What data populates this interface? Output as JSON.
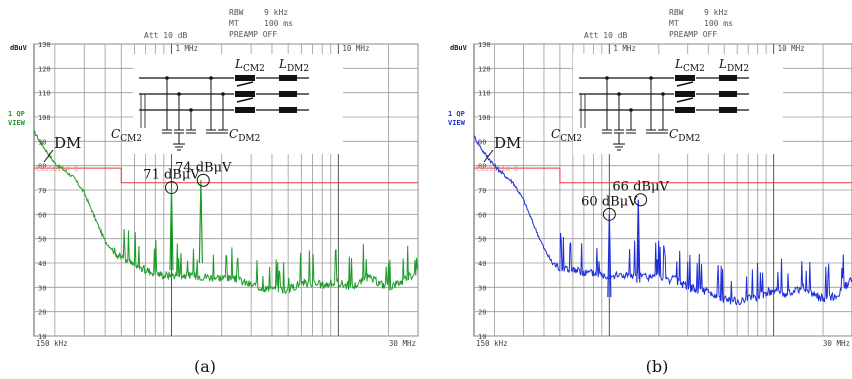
{
  "panels": [
    {
      "id": "a",
      "caption": "(a)",
      "header": {
        "att": "Att 10 dB",
        "rbw_label": "RBW",
        "rbw_value": "9 kHz",
        "mt_label": "MT",
        "mt_value": "100 ms",
        "preamp": "PREAMP OFF"
      },
      "unit_label": "dBuV",
      "trace_label": [
        "1 QP",
        "VIEW"
      ],
      "limit_label": "EN55011A Q",
      "dm_label": "DM",
      "component_labels": {
        "lcm": "L",
        "lcm_sub": "CM2",
        "ldm": "L",
        "ldm_sub": "DM2",
        "ccm": "C",
        "ccm_sub": "CM2",
        "cdm": "C",
        "cdm_sub": "DM2"
      },
      "annotations": [
        {
          "text": "71 dBμV",
          "freq_mhz": 1.0,
          "level": 71
        },
        {
          "text": "74 dBμV",
          "freq_mhz": 1.55,
          "level": 74
        }
      ],
      "colors": {
        "trace": "#1f9a2a"
      }
    },
    {
      "id": "b",
      "caption": "(b)",
      "header": {
        "att": "Att 10 dB",
        "rbw_label": "RBW",
        "rbw_value": "9 kHz",
        "mt_label": "MT",
        "mt_value": "100 ms",
        "preamp": "PREAMP OFF"
      },
      "unit_label": "dBuV",
      "trace_label": [
        "1 QP",
        "VIEW"
      ],
      "limit_label": "EN55011A Q",
      "dm_label": "DM",
      "component_labels": {
        "lcm": "L",
        "lcm_sub": "CM2",
        "ldm": "L",
        "ldm_sub": "DM2",
        "ccm": "C",
        "ccm_sub": "CM2",
        "cdm": "C",
        "cdm_sub": "DM2"
      },
      "annotations": [
        {
          "text": "60 dBμV",
          "freq_mhz": 1.0,
          "level": 60
        },
        {
          "text": "66 dBμV",
          "freq_mhz": 1.55,
          "level": 66
        }
      ],
      "colors": {
        "trace": "#1f2fd6"
      }
    }
  ],
  "chart_data": [
    {
      "type": "line",
      "title": "",
      "xlabel": "",
      "ylabel": "dBuV",
      "x_scale": "log",
      "x_ticks": [
        "150 kHz",
        "1 MHz",
        "10 MHz",
        "30 MHz"
      ],
      "x_tick_values_mhz": [
        0.15,
        1,
        10,
        30
      ],
      "xlim_mhz": [
        0.15,
        30
      ],
      "y_ticks": [
        10,
        20,
        30,
        40,
        50,
        60,
        70,
        80,
        90,
        100,
        110,
        120,
        130
      ],
      "ylim": [
        10,
        130
      ],
      "grid": true,
      "series": [
        {
          "name": "1 QP VIEW",
          "x_mhz": [
            0.15,
            0.17,
            0.2,
            0.23,
            0.26,
            0.3,
            0.35,
            0.4,
            0.45,
            0.5,
            0.6,
            0.7,
            0.8,
            0.9,
            1.0,
            1.2,
            1.5,
            2.0,
            2.5,
            3.0,
            4.0,
            5.0,
            6.0,
            8.0,
            10.0,
            12.0,
            15.0,
            20.0,
            25.0,
            30.0
          ],
          "y": [
            94,
            88,
            81,
            78,
            75,
            69,
            58,
            49,
            45,
            42,
            39,
            37,
            36,
            35,
            71,
            35,
            74,
            34,
            33,
            31,
            29,
            29,
            32,
            31,
            32,
            30,
            34,
            30,
            33,
            37
          ]
        },
        {
          "name": "EN55011A Q",
          "x_mhz": [
            0.15,
            0.5,
            0.5,
            30
          ],
          "y": [
            79,
            79,
            73,
            73
          ]
        }
      ]
    },
    {
      "type": "line",
      "title": "",
      "xlabel": "",
      "ylabel": "dBuV",
      "x_scale": "log",
      "x_ticks": [
        "150 kHz",
        "1 MHz",
        "10 MHz",
        "30 MHz"
      ],
      "x_tick_values_mhz": [
        0.15,
        1,
        10,
        30
      ],
      "xlim_mhz": [
        0.15,
        30
      ],
      "y_ticks": [
        10,
        20,
        30,
        40,
        50,
        60,
        70,
        80,
        90,
        100,
        110,
        120,
        130
      ],
      "ylim": [
        10,
        130
      ],
      "grid": true,
      "series": [
        {
          "name": "1 QP VIEW",
          "x_mhz": [
            0.15,
            0.17,
            0.2,
            0.23,
            0.26,
            0.3,
            0.35,
            0.4,
            0.45,
            0.5,
            0.6,
            0.7,
            0.8,
            0.9,
            1.0,
            1.2,
            1.5,
            2.0,
            2.5,
            3.0,
            4.0,
            5.0,
            6.0,
            8.0,
            10.0,
            12.0,
            15.0,
            20.0,
            25.0,
            30.0
          ],
          "y": [
            92,
            86,
            80,
            76,
            73,
            66,
            55,
            46,
            40,
            38,
            37,
            36,
            36,
            35,
            60,
            35,
            66,
            34,
            33,
            30,
            28,
            25,
            24,
            26,
            29,
            27,
            30,
            25,
            27,
            34
          ]
        },
        {
          "name": "EN55011A Q",
          "x_mhz": [
            0.15,
            0.5,
            0.5,
            30
          ],
          "y": [
            79,
            79,
            73,
            73
          ]
        }
      ]
    }
  ]
}
